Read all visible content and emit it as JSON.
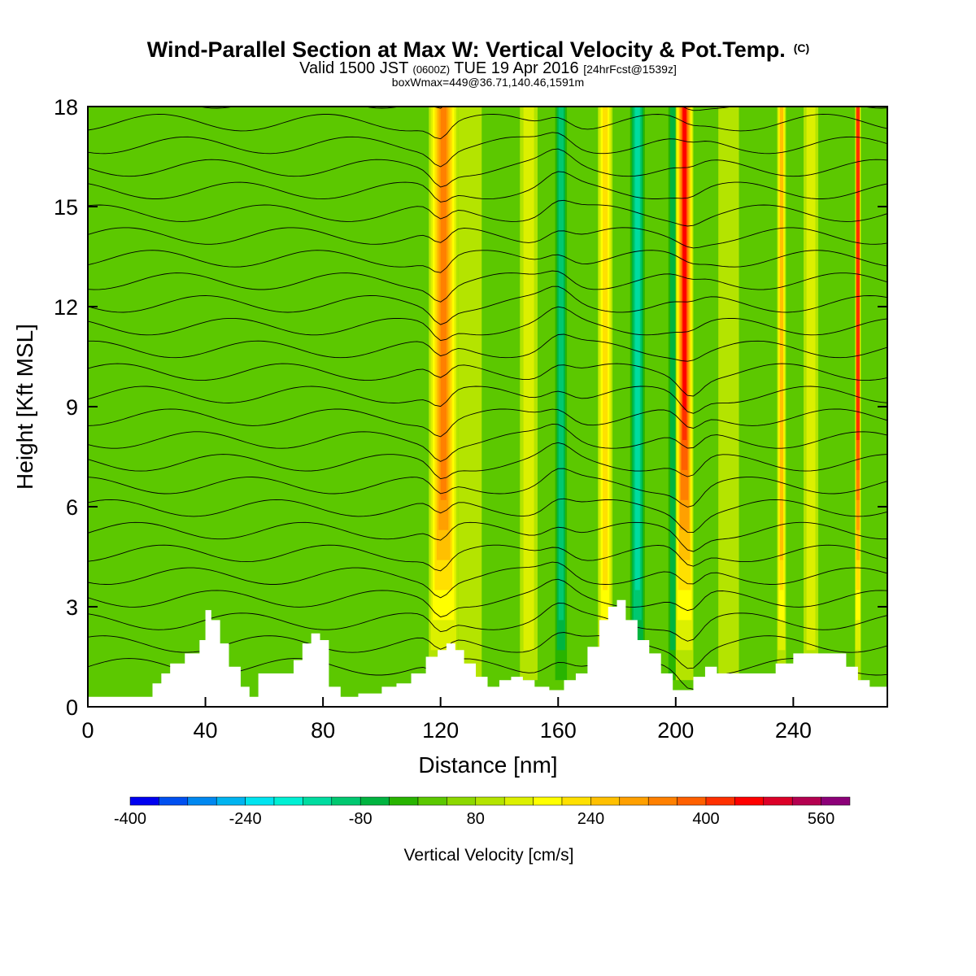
{
  "title": {
    "line1": "Wind-Parallel Section at Max W: Vertical Velocity & Pot.Temp.",
    "line1_mark": "(C)",
    "line2_a": "Valid 1500 JST",
    "line2_b": "(0600Z)",
    "line2_c": "TUE 19 Apr 2016",
    "line2_d": "[24hrFcst@1539z]",
    "line3": "boxWmax=449@36.71,140.46,1591m"
  },
  "chart_data": {
    "type": "heatmap",
    "xlabel": "Distance [nm]",
    "ylabel": "Height [Kft MSL]",
    "xlim": [
      0,
      272
    ],
    "ylim": [
      0,
      18
    ],
    "xticks": [
      0,
      40,
      80,
      120,
      160,
      200,
      240
    ],
    "yticks": [
      0,
      3,
      6,
      9,
      12,
      15,
      18
    ],
    "grid": false,
    "filled_field": "Vertical Velocity [cm/s]",
    "contour_field": "Potential temperature (black contours)",
    "updraft_bands": [
      {
        "x": 121,
        "w": 10,
        "peak": 320
      },
      {
        "x": 130,
        "w": 8,
        "peak": 110
      },
      {
        "x": 150,
        "w": 6,
        "peak": 130
      },
      {
        "x": 176,
        "w": 5,
        "peak": 200
      },
      {
        "x": 203,
        "w": 6,
        "peak": 449
      },
      {
        "x": 218,
        "w": 7,
        "peak": 110
      },
      {
        "x": 236,
        "w": 3,
        "peak": 250
      },
      {
        "x": 246,
        "w": 5,
        "peak": 150
      },
      {
        "x": 262,
        "w": 2,
        "peak": 420
      }
    ],
    "downdraft_bands": [
      {
        "x": 161,
        "w": 4,
        "peak": -120
      },
      {
        "x": 187,
        "w": 5,
        "peak": -190
      },
      {
        "x": 199,
        "w": 3,
        "peak": -90
      }
    ],
    "terrain_kft": [
      [
        0,
        0.3
      ],
      [
        20,
        0.3
      ],
      [
        22,
        0.7
      ],
      [
        25,
        1.0
      ],
      [
        28,
        1.3
      ],
      [
        33,
        1.6
      ],
      [
        38,
        2.0
      ],
      [
        40,
        2.9
      ],
      [
        42,
        2.6
      ],
      [
        45,
        1.9
      ],
      [
        48,
        1.2
      ],
      [
        52,
        0.6
      ],
      [
        55,
        0.3
      ],
      [
        58,
        1.0
      ],
      [
        62,
        1.0
      ],
      [
        66,
        1.0
      ],
      [
        70,
        1.4
      ],
      [
        73,
        1.9
      ],
      [
        76,
        2.2
      ],
      [
        79,
        2.0
      ],
      [
        82,
        0.6
      ],
      [
        86,
        0.3
      ],
      [
        92,
        0.4
      ],
      [
        100,
        0.6
      ],
      [
        105,
        0.7
      ],
      [
        110,
        1.0
      ],
      [
        115,
        1.5
      ],
      [
        119,
        1.7
      ],
      [
        122,
        1.9
      ],
      [
        125,
        1.7
      ],
      [
        128,
        1.3
      ],
      [
        132,
        0.9
      ],
      [
        136,
        0.6
      ],
      [
        140,
        0.8
      ],
      [
        144,
        0.9
      ],
      [
        148,
        0.8
      ],
      [
        152,
        0.6
      ],
      [
        157,
        0.5
      ],
      [
        162,
        0.8
      ],
      [
        166,
        1.0
      ],
      [
        170,
        1.8
      ],
      [
        174,
        2.6
      ],
      [
        177,
        3.0
      ],
      [
        180,
        3.2
      ],
      [
        183,
        2.6
      ],
      [
        187,
        2.0
      ],
      [
        191,
        1.6
      ],
      [
        195,
        1.0
      ],
      [
        199,
        0.5
      ],
      [
        202,
        0.5
      ],
      [
        206,
        0.9
      ],
      [
        210,
        1.2
      ],
      [
        214,
        1.0
      ],
      [
        230,
        1.0
      ],
      [
        234,
        1.3
      ],
      [
        240,
        1.6
      ],
      [
        256,
        1.6
      ],
      [
        258,
        1.2
      ],
      [
        262,
        0.8
      ],
      [
        266,
        0.6
      ],
      [
        272,
        0.6
      ]
    ]
  },
  "colorbar": {
    "title": "Vertical Velocity [cm/s]",
    "labels": [
      "-400",
      "-240",
      "-80",
      "80",
      "240",
      "400",
      "560"
    ],
    "label_values": [
      -400,
      -240,
      -80,
      80,
      240,
      400,
      560
    ],
    "min": -400,
    "max": 600,
    "step": 40,
    "colors": [
      "#0000f0",
      "#0050f0",
      "#0088f0",
      "#00b4f0",
      "#00e4f0",
      "#00f0d4",
      "#00dca0",
      "#00c870",
      "#00b440",
      "#28b400",
      "#5cc800",
      "#8cd800",
      "#b4e400",
      "#dcf000",
      "#ffff00",
      "#ffe000",
      "#ffc000",
      "#ffa000",
      "#ff8000",
      "#ff6000",
      "#ff3000",
      "#ff0000",
      "#dc0028",
      "#b40050",
      "#8c0078"
    ]
  }
}
